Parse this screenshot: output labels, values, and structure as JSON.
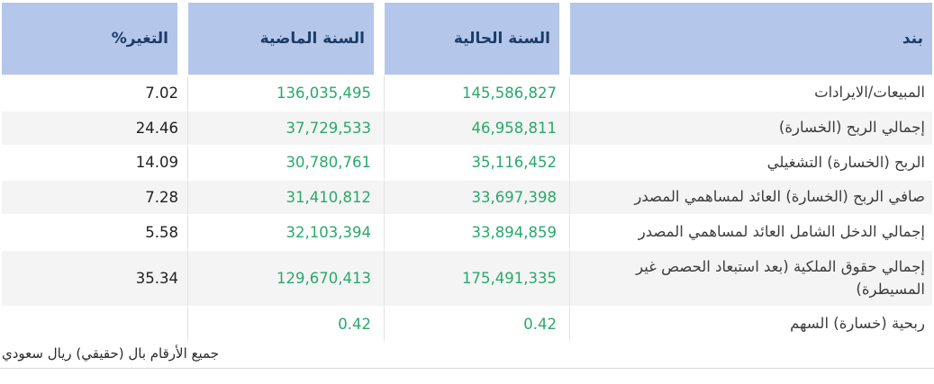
{
  "table": {
    "columns": [
      {
        "key": "item",
        "label": "بند"
      },
      {
        "key": "current",
        "label": "السنة الحالية"
      },
      {
        "key": "previous",
        "label": "السنة الماضية"
      },
      {
        "key": "change",
        "label": "التغير%"
      }
    ],
    "rows": [
      {
        "item": "المبيعات/الايرادات",
        "current": "145,586,827",
        "previous": "136,035,495",
        "change": "7.02"
      },
      {
        "item": "إجمالي الربح (الخسارة)",
        "current": "46,958,811",
        "previous": "37,729,533",
        "change": "24.46"
      },
      {
        "item": "الربح (الخسارة) التشغيلي",
        "current": "35,116,452",
        "previous": "30,780,761",
        "change": "14.09"
      },
      {
        "item": "صافي الربح (الخسارة) العائد لمساهمي المصدر",
        "current": "33,697,398",
        "previous": "31,410,812",
        "change": "7.28"
      },
      {
        "item": "إجمالي الدخل الشامل العائد لمساهمي المصدر",
        "current": "33,894,859",
        "previous": "32,103,394",
        "change": "5.58"
      },
      {
        "item": "إجمالي حقوق الملكية (بعد استبعاد الحصص غير المسيطرة)",
        "current": "175,491,335",
        "previous": "129,670,413",
        "change": "35.34"
      },
      {
        "item": "ربحية (خسارة) السهم",
        "current": "0.42",
        "previous": "0.42",
        "change": ""
      }
    ]
  },
  "footer": {
    "note": "جميع الأرقام بال (حقيقي) ريال سعودي"
  },
  "colors": {
    "header_bg": "#b4c7ea",
    "header_text": "#1d3b66",
    "value_green": "#28a96c",
    "change_text": "#1f1f1f",
    "row_alt_bg": "#f4f4f4"
  }
}
